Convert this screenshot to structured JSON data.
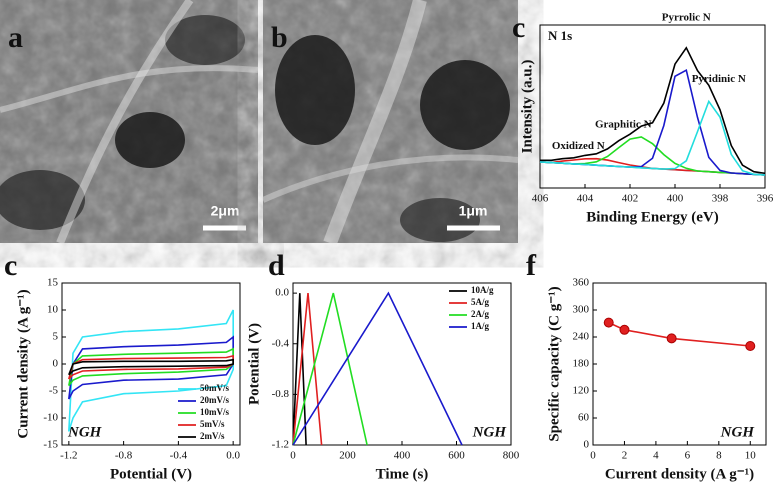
{
  "images": [
    {
      "panel": "a",
      "scale_bar": "2μm"
    },
    {
      "panel": "b",
      "scale_bar": "1μm"
    }
  ],
  "chart_data": [
    {
      "type": "line",
      "panel": "c",
      "title": "N 1s",
      "xlabel": "Binding Energy (eV)",
      "ylabel": "Intensity (a.u.)",
      "xlim": [
        406,
        396
      ],
      "xticks": [
        406,
        404,
        402,
        400,
        398,
        396
      ],
      "ylim": [
        0,
        100
      ],
      "x": [
        406,
        405.5,
        405,
        404.5,
        404,
        403.5,
        403,
        402.5,
        402,
        401.5,
        401,
        400.5,
        400,
        399.5,
        399,
        398.5,
        398,
        397.5,
        397,
        396.5,
        396
      ],
      "series": [
        {
          "color": "#5aa0e0",
          "values": [
            16,
            15.6,
            15.2,
            14.8,
            14.4,
            14,
            13.6,
            13.2,
            12.8,
            12.4,
            12,
            11.6,
            11.2,
            10.8,
            10.4,
            10,
            9.6,
            9.2,
            8.8,
            8.4,
            8
          ]
        },
        {
          "name": "Oxidized N",
          "color": "#e02020",
          "values": [
            16,
            15.6,
            16.5,
            17.2,
            17.9,
            18,
            17.1,
            15.6,
            14.1,
            13,
            12,
            11.6,
            11.2,
            10.8,
            10.4,
            10,
            9.6,
            9.2,
            8.8,
            8.4,
            8
          ]
        },
        {
          "name": "Graphitic N",
          "color": "#22dd22",
          "values": [
            16,
            15.6,
            15.2,
            14.8,
            15,
            16.1,
            19.3,
            24.8,
            30,
            31.3,
            27.2,
            20.5,
            15.1,
            12.1,
            10.4,
            10,
            9.6,
            9.2,
            8.8,
            8.4,
            8
          ]
        },
        {
          "name": "Pyrrolic N",
          "color": "#1a1acc",
          "values": [
            16,
            15.6,
            15.2,
            14.8,
            14.4,
            14,
            13.6,
            13.2,
            12.8,
            13.1,
            18.2,
            38.3,
            68.5,
            72.3,
            43.3,
            18.8,
            10.8,
            9.2,
            8.8,
            8.4,
            8
          ]
        },
        {
          "name": "Pyridinic N",
          "color": "#22dddd",
          "values": [
            16,
            15.6,
            15.2,
            14.8,
            14.4,
            14,
            13.6,
            13.2,
            12.8,
            12.4,
            12,
            11.6,
            11.9,
            16.7,
            34.6,
            53.1,
            43.5,
            20.6,
            10.6,
            8.4,
            8
          ]
        },
        {
          "color": "#000000",
          "values": [
            17,
            17,
            18,
            18.5,
            20,
            21,
            24,
            29,
            33,
            38,
            40,
            52,
            76,
            86,
            72,
            63,
            48,
            26,
            14,
            10,
            9
          ]
        }
      ]
    },
    {
      "type": "line",
      "panel": "c",
      "annotation": "NGH",
      "legend": "lower right",
      "xlabel": "Potential (V)",
      "ylabel": "Current density (A g⁻¹)",
      "xlim": [
        -1.25,
        0.05
      ],
      "xticks": [
        -1.2,
        -0.8,
        -0.4,
        {
          "value": 0,
          "label": "0.0"
        }
      ],
      "ylim": [
        -15,
        15
      ],
      "yticks": [
        -15,
        -10,
        -5,
        0,
        5,
        10,
        15
      ],
      "x": [
        -1.2,
        -1.17,
        -1.1,
        -0.8,
        -0.4,
        -0.05,
        0,
        0,
        -0.05,
        -0.4,
        -0.8,
        -1.1,
        -1.17,
        -1.2
      ],
      "series": [
        {
          "name": "50mV/s",
          "color": "#33e5f5",
          "values": [
            -12.5,
            2,
            5,
            6,
            6.5,
            7.5,
            10,
            -1,
            -4,
            -5,
            -5.5,
            -7,
            -10,
            -12.5
          ]
        },
        {
          "name": "20mV/s",
          "color": "#1a1acc",
          "values": [
            -6.5,
            0,
            2.8,
            3.2,
            3.5,
            4,
            5,
            0,
            -2,
            -2.8,
            -3,
            -3.8,
            -5,
            -6.5
          ]
        },
        {
          "name": "10mV/s",
          "color": "#22dd22",
          "values": [
            -4,
            0,
            1.5,
            1.8,
            2,
            2.2,
            2.8,
            0,
            -1,
            -1.5,
            -1.8,
            -2.2,
            -3,
            -4
          ]
        },
        {
          "name": "5mV/s",
          "color": "#e02020",
          "values": [
            -2.8,
            0,
            0.8,
            1,
            1.1,
            1.2,
            1.5,
            0,
            -0.6,
            -0.9,
            -1,
            -1.3,
            -2,
            -2.8
          ]
        },
        {
          "name": "2mV/s",
          "color": "#000000",
          "values": [
            -2,
            0,
            0.4,
            0.5,
            0.5,
            0.6,
            0.8,
            0,
            -0.3,
            -0.4,
            -0.5,
            -0.7,
            -1.3,
            -2
          ]
        }
      ]
    },
    {
      "type": "line",
      "panel": "d",
      "annotation": "NGH",
      "legend": "upper right",
      "xlabel": "Time (s)",
      "ylabel": "Potential (V)",
      "xlim": [
        0,
        800
      ],
      "xticks": [
        0,
        200,
        400,
        600,
        800
      ],
      "ylim": [
        -1.2,
        0.08
      ],
      "yticks": [
        {
          "value": 0,
          "label": "0.0"
        },
        -0.4,
        -0.8,
        -1.2
      ],
      "series": [
        {
          "name": "10A/g",
          "color": "#000000",
          "x": [
            0,
            25,
            48
          ],
          "values": [
            -1.2,
            0,
            -1.2
          ]
        },
        {
          "name": "5A/g",
          "color": "#e02020",
          "x": [
            0,
            55,
            105
          ],
          "values": [
            -1.2,
            0,
            -1.2
          ]
        },
        {
          "name": "2A/g",
          "color": "#22dd22",
          "x": [
            0,
            148,
            272
          ],
          "values": [
            -1.2,
            0,
            -1.2
          ]
        },
        {
          "name": "1A/g",
          "color": "#1a1acc",
          "x": [
            0,
            350,
            620
          ],
          "values": [
            -1.2,
            0,
            -1.2
          ]
        }
      ]
    },
    {
      "type": "line",
      "panel": "f",
      "annotation": "NGH",
      "markers": true,
      "xlabel": "Current density (A g⁻¹)",
      "ylabel": "Specific capacity (C g⁻¹)",
      "xlim": [
        0,
        11
      ],
      "xticks": [
        0,
        2,
        4,
        6,
        8,
        10
      ],
      "ylim": [
        0,
        360
      ],
      "yticks": [
        0,
        60,
        120,
        180,
        240,
        300,
        360
      ],
      "x": [
        1,
        2,
        5,
        10
      ],
      "series": [
        {
          "color": "#e02020",
          "values": [
            272,
            256,
            237,
            220
          ]
        }
      ]
    }
  ]
}
